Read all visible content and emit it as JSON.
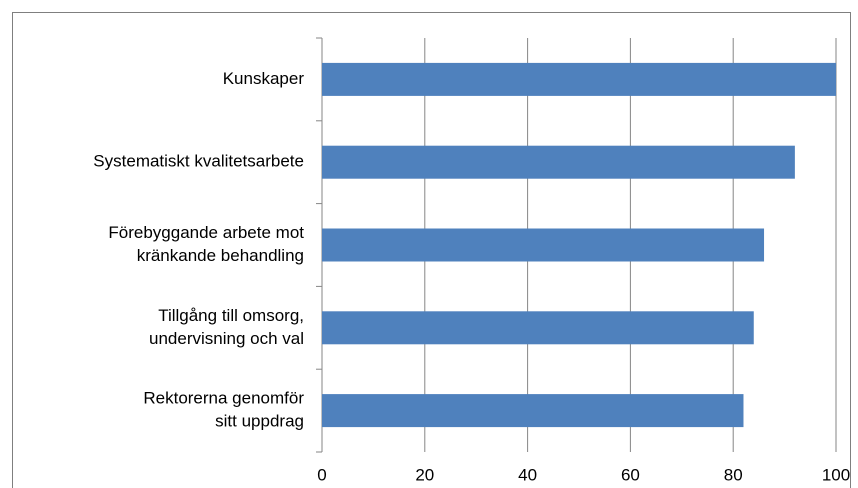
{
  "chart_data": {
    "type": "bar",
    "orientation": "horizontal",
    "categories": [
      [
        "Kunskaper"
      ],
      [
        "Systematiskt kvalitetsarbete"
      ],
      [
        "Förebyggande arbete mot",
        "kränkande behandling"
      ],
      [
        "Tillgång till omsorg,",
        "undervisning och val"
      ],
      [
        "Rektorerna genomför",
        "sitt uppdrag"
      ]
    ],
    "values": [
      100,
      92,
      86,
      84,
      82
    ],
    "color": "#4f81bd",
    "xlim": [
      0,
      100
    ],
    "xticks": [
      0,
      20,
      40,
      60,
      80,
      100
    ],
    "grid": true
  }
}
